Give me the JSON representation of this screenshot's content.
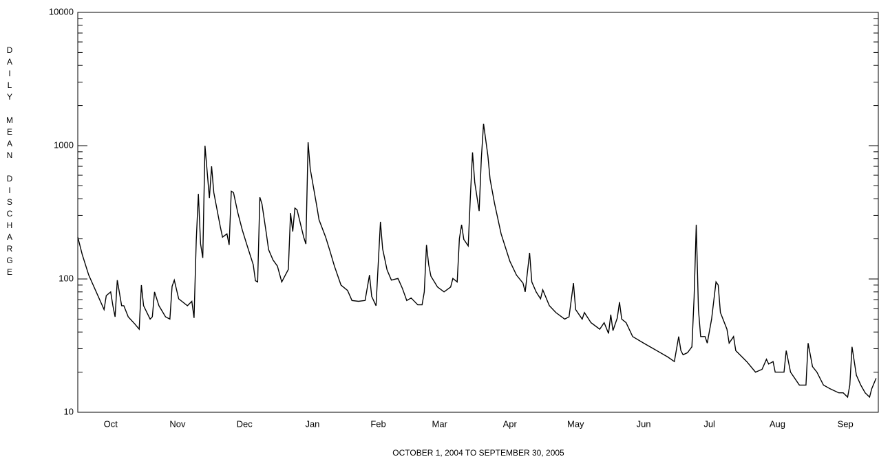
{
  "chart_data": {
    "type": "line",
    "log_y": true,
    "color": "#000000",
    "y_label": "DAILY MEAN DISCHARGE",
    "x_label": "OCTOBER 1, 2004  TO  SEPTEMBER 30, 2005",
    "xlim": [
      0,
      365
    ],
    "ylim": [
      10,
      10000
    ],
    "yticks": [
      10,
      100,
      1000,
      10000
    ],
    "xticks": [
      {
        "value": 15,
        "label": "Oct"
      },
      {
        "value": 45.5,
        "label": "Nov"
      },
      {
        "value": 76,
        "label": "Dec"
      },
      {
        "value": 107,
        "label": "Jan"
      },
      {
        "value": 137,
        "label": "Feb"
      },
      {
        "value": 165,
        "label": "Mar"
      },
      {
        "value": 197,
        "label": "Apr"
      },
      {
        "value": 227,
        "label": "May"
      },
      {
        "value": 258,
        "label": "Jun"
      },
      {
        "value": 288,
        "label": "Jul"
      },
      {
        "value": 319,
        "label": "Aug"
      },
      {
        "value": 350,
        "label": "Sep"
      }
    ],
    "x": [
      0,
      2,
      5,
      12,
      13,
      15,
      16,
      17,
      18,
      20,
      21,
      23,
      26,
      28,
      29,
      30,
      33,
      34,
      35,
      37,
      40,
      42,
      43,
      44,
      46,
      50,
      52,
      53,
      54,
      55,
      56,
      57,
      58,
      60,
      61,
      62,
      65,
      66,
      68,
      69,
      70,
      71,
      73,
      75,
      77,
      80,
      81,
      82,
      83,
      84,
      86,
      87,
      89,
      91,
      93,
      96,
      97,
      98,
      99,
      100,
      103,
      104,
      105,
      106,
      109,
      110,
      113,
      115,
      117,
      120,
      123,
      125,
      128,
      131,
      133,
      134,
      136,
      138,
      139,
      141,
      143,
      146,
      148,
      150,
      152,
      155,
      157,
      158,
      159,
      160,
      161,
      164,
      167,
      170,
      171,
      173,
      174,
      175,
      176,
      178,
      179,
      180,
      181,
      183,
      184,
      185,
      187,
      188,
      190,
      193,
      197,
      200,
      203,
      204,
      206,
      207,
      209,
      211,
      212,
      215,
      218,
      222,
      224,
      226,
      227,
      230,
      231,
      234,
      238,
      240,
      242,
      243,
      244,
      246,
      247,
      248,
      250,
      253,
      258,
      264,
      269,
      272,
      274,
      275,
      276,
      278,
      280,
      281,
      282,
      283,
      284,
      286,
      287,
      289,
      291,
      292,
      293,
      296,
      297,
      299,
      300,
      305,
      309,
      312,
      314,
      315,
      317,
      318,
      322,
      323,
      325,
      329,
      332,
      333,
      335,
      337,
      340,
      343,
      347,
      349,
      351,
      352,
      353,
      355,
      357,
      359,
      361,
      362,
      364
    ],
    "values": [
      206,
      153,
      107,
      59,
      75,
      80,
      63,
      52,
      98,
      63,
      63,
      52,
      46,
      42,
      90,
      63,
      50,
      52,
      80,
      63,
      52,
      50,
      88,
      98,
      71,
      63,
      68,
      51,
      194,
      435,
      183,
      144,
      1000,
      405,
      700,
      445,
      246,
      206,
      218,
      180,
      455,
      445,
      312,
      233,
      183,
      128,
      97,
      95,
      410,
      365,
      218,
      166,
      139,
      125,
      95,
      118,
      312,
      227,
      340,
      330,
      206,
      183,
      1060,
      670,
      350,
      278,
      206,
      162,
      125,
      90,
      82,
      69,
      68,
      69,
      107,
      74,
      63,
      268,
      168,
      117,
      98,
      101,
      85,
      69,
      72,
      64,
      64,
      80,
      180,
      128,
      105,
      87,
      80,
      87,
      101,
      95,
      201,
      255,
      198,
      177,
      410,
      890,
      530,
      323,
      807,
      1460,
      840,
      560,
      370,
      218,
      136,
      107,
      93,
      80,
      157,
      95,
      80,
      71,
      83,
      63,
      56,
      50,
      52,
      93,
      59,
      50,
      56,
      47,
      42,
      47,
      39,
      54,
      41,
      51,
      67,
      50,
      47,
      37,
      33,
      29,
      26,
      24,
      37,
      29,
      27,
      28,
      31,
      73,
      255,
      59,
      37,
      37,
      33,
      50,
      95,
      90,
      56,
      42,
      33,
      37,
      29,
      24,
      20,
      21,
      25,
      23,
      24,
      20,
      20,
      29,
      20,
      16,
      16,
      33,
      22,
      20,
      16,
      15,
      14,
      14,
      13,
      16,
      31,
      19,
      16,
      14,
      13,
      15,
      18
    ]
  }
}
